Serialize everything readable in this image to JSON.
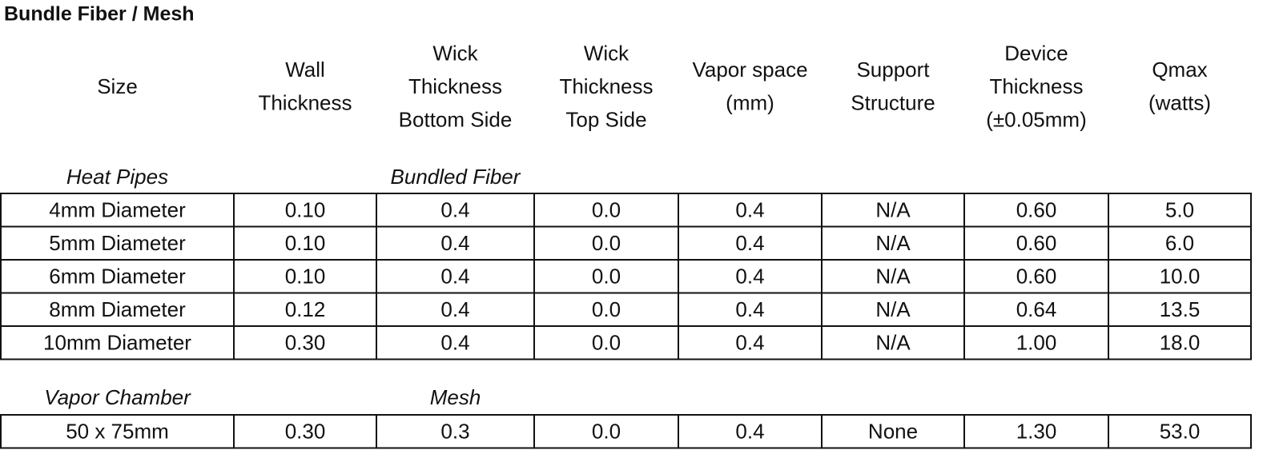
{
  "title": "Bundle Fiber / Mesh",
  "header": [
    [
      "Size"
    ],
    [
      "Wall",
      "Thickness"
    ],
    [
      "Wick",
      "Thickness",
      "Bottom Side"
    ],
    [
      "Wick",
      "Thickness",
      "Top Side"
    ],
    [
      "Vapor space",
      "(mm)"
    ],
    [
      "Support",
      "Structure"
    ],
    [
      "Device",
      "Thickness",
      "(±0.05mm)"
    ],
    [
      "Qmax",
      "(watts)"
    ]
  ],
  "sections": [
    {
      "label": "Heat Pipes",
      "wick_type": "Bundled Fiber",
      "rows": [
        [
          "4mm Diameter",
          "0.10",
          "0.4",
          "0.0",
          "0.4",
          "N/A",
          "0.60",
          "5.0"
        ],
        [
          "5mm Diameter",
          "0.10",
          "0.4",
          "0.0",
          "0.4",
          "N/A",
          "0.60",
          "6.0"
        ],
        [
          "6mm Diameter",
          "0.10",
          "0.4",
          "0.0",
          "0.4",
          "N/A",
          "0.60",
          "10.0"
        ],
        [
          "8mm Diameter",
          "0.12",
          "0.4",
          "0.0",
          "0.4",
          "N/A",
          "0.64",
          "13.5"
        ],
        [
          "10mm Diameter",
          "0.30",
          "0.4",
          "0.0",
          "0.4",
          "N/A",
          "1.00",
          "18.0"
        ]
      ]
    },
    {
      "label": "Vapor Chamber",
      "wick_type": "Mesh",
      "rows": [
        [
          "50 x 75mm",
          "0.30",
          "0.3",
          "0.0",
          "0.4",
          "None",
          "1.30",
          "53.0"
        ]
      ]
    }
  ]
}
